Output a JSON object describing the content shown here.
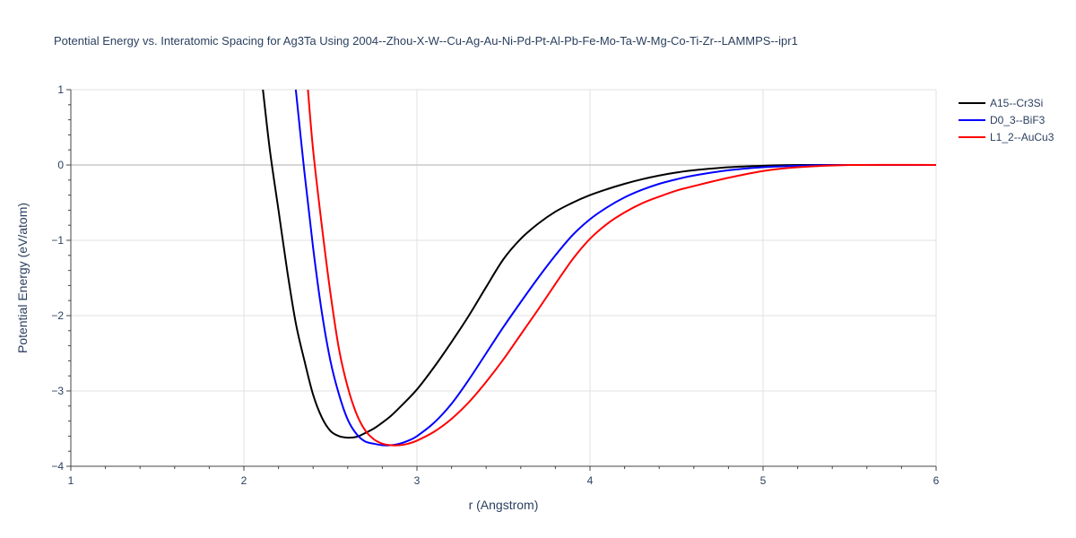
{
  "chart_data": {
    "type": "line",
    "title": "Potential Energy vs. Interatomic Spacing for Ag3Ta Using 2004--Zhou-X-W--Cu-Ag-Au-Ni-Pd-Pt-Al-Pb-Fe-Mo-Ta-W-Mg-Co-Ti-Zr--LAMMPS--ipr1",
    "xlabel": "r (Angstrom)",
    "ylabel": "Potential Energy (eV/atom)",
    "xlim": [
      1,
      6
    ],
    "ylim": [
      -4,
      1
    ],
    "xticks": [
      1,
      2,
      3,
      4,
      5,
      6
    ],
    "yticks": [
      1,
      0,
      -1,
      -2,
      -3,
      -4
    ],
    "ytick_labels": [
      "1",
      "0",
      "−1",
      "−2",
      "−3",
      "−4"
    ],
    "grid": true,
    "legend_position": "top-right",
    "series": [
      {
        "name": "A15--Cr3Si",
        "color": "#000000",
        "x": [
          2.11,
          2.15,
          2.2,
          2.25,
          2.3,
          2.35,
          2.4,
          2.45,
          2.5,
          2.55,
          2.6,
          2.65,
          2.7,
          2.75,
          2.8,
          2.85,
          2.9,
          3.0,
          3.1,
          3.2,
          3.3,
          3.4,
          3.5,
          3.6,
          3.7,
          3.8,
          3.9,
          4.0,
          4.1,
          4.2,
          4.3,
          4.4,
          4.5,
          4.6,
          4.8,
          5.0,
          5.2,
          5.5,
          6.0
        ],
        "y": [
          1.0,
          0.2,
          -0.6,
          -1.4,
          -2.1,
          -2.6,
          -3.05,
          -3.35,
          -3.53,
          -3.6,
          -3.62,
          -3.61,
          -3.56,
          -3.5,
          -3.42,
          -3.33,
          -3.22,
          -2.98,
          -2.68,
          -2.35,
          -2.0,
          -1.62,
          -1.25,
          -0.98,
          -0.78,
          -0.62,
          -0.5,
          -0.4,
          -0.32,
          -0.25,
          -0.19,
          -0.14,
          -0.1,
          -0.07,
          -0.03,
          -0.01,
          0.0,
          0.0,
          0.0
        ]
      },
      {
        "name": "D0_3--BiF3",
        "color": "#0000ff",
        "x": [
          2.3,
          2.35,
          2.4,
          2.45,
          2.5,
          2.55,
          2.6,
          2.65,
          2.7,
          2.75,
          2.8,
          2.85,
          2.9,
          2.95,
          3.0,
          3.1,
          3.2,
          3.3,
          3.4,
          3.5,
          3.6,
          3.7,
          3.8,
          3.9,
          4.0,
          4.1,
          4.2,
          4.3,
          4.4,
          4.5,
          4.6,
          4.8,
          5.0,
          5.2,
          5.5,
          6.0
        ],
        "y": [
          1.0,
          -0.1,
          -1.1,
          -1.95,
          -2.6,
          -3.05,
          -3.38,
          -3.57,
          -3.67,
          -3.7,
          -3.72,
          -3.72,
          -3.7,
          -3.66,
          -3.6,
          -3.42,
          -3.17,
          -2.85,
          -2.5,
          -2.15,
          -1.82,
          -1.5,
          -1.2,
          -0.93,
          -0.72,
          -0.56,
          -0.43,
          -0.33,
          -0.25,
          -0.19,
          -0.14,
          -0.07,
          -0.03,
          -0.01,
          0.0,
          0.0
        ]
      },
      {
        "name": "L1_2--AuCu3",
        "color": "#ff0000",
        "x": [
          2.37,
          2.4,
          2.45,
          2.5,
          2.55,
          2.6,
          2.65,
          2.7,
          2.75,
          2.8,
          2.85,
          2.9,
          2.95,
          3.0,
          3.1,
          3.2,
          3.3,
          3.4,
          3.5,
          3.6,
          3.7,
          3.8,
          3.9,
          4.0,
          4.1,
          4.2,
          4.3,
          4.4,
          4.5,
          4.6,
          4.8,
          5.0,
          5.2,
          5.5,
          6.0
        ],
        "y": [
          1.0,
          0.2,
          -0.8,
          -1.7,
          -2.45,
          -2.95,
          -3.3,
          -3.52,
          -3.64,
          -3.7,
          -3.72,
          -3.72,
          -3.7,
          -3.66,
          -3.54,
          -3.37,
          -3.15,
          -2.88,
          -2.58,
          -2.25,
          -1.92,
          -1.58,
          -1.25,
          -0.98,
          -0.78,
          -0.63,
          -0.51,
          -0.42,
          -0.34,
          -0.28,
          -0.17,
          -0.08,
          -0.03,
          0.0,
          0.0
        ]
      }
    ]
  }
}
